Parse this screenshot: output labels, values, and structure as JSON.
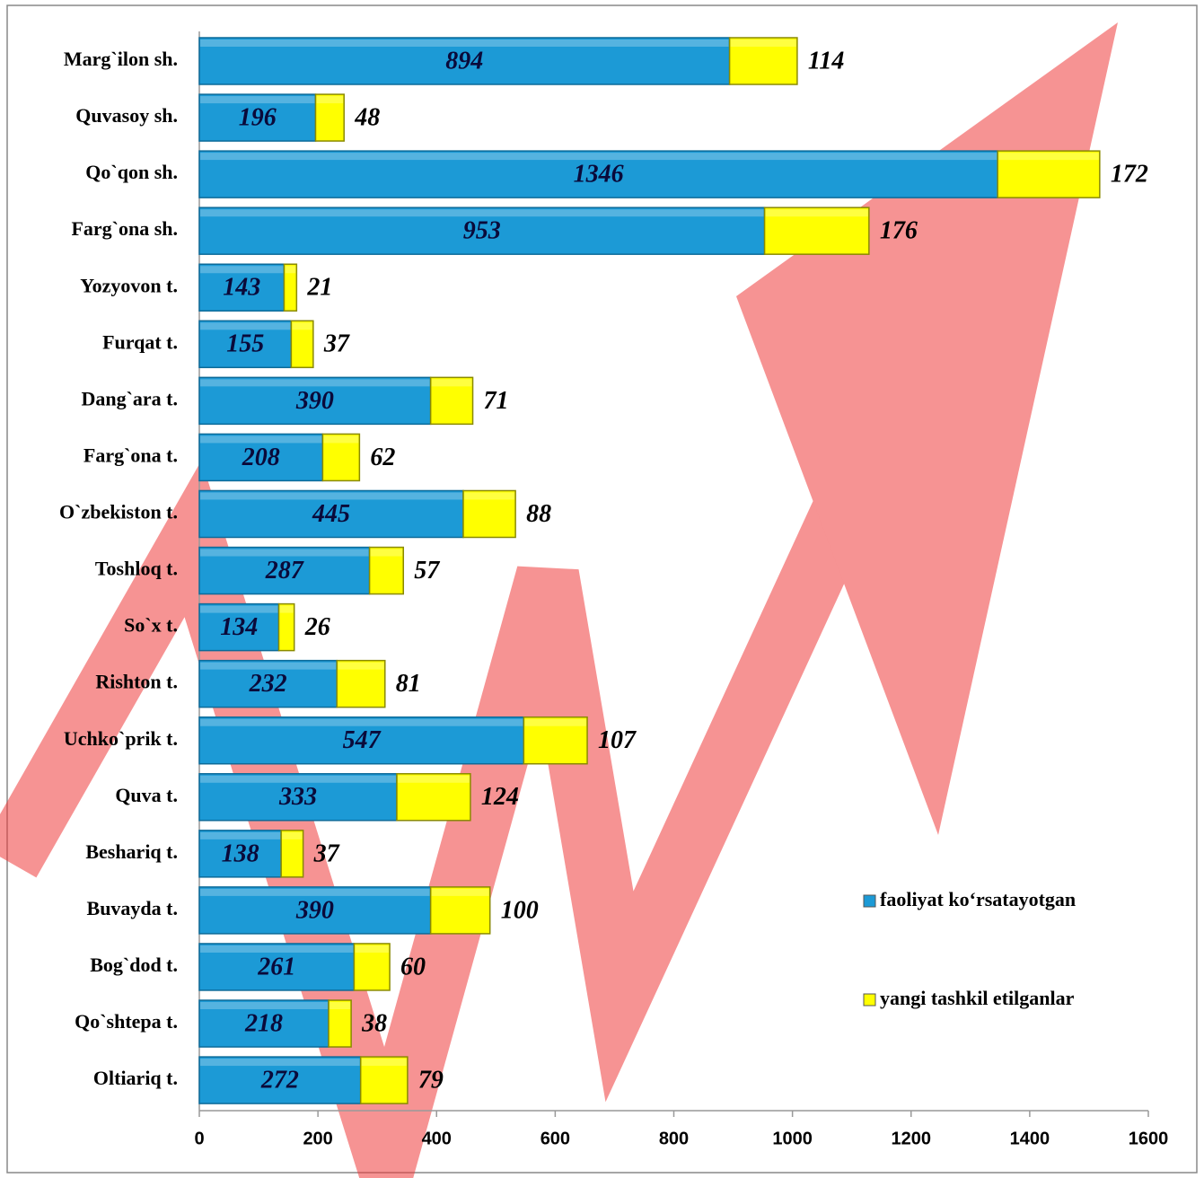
{
  "chart_data": {
    "type": "bar",
    "orientation": "horizontal",
    "stacked": true,
    "categories": [
      "Marg`ilon sh.",
      "Quvasoy sh.",
      "Qo`qon sh.",
      "Farg`ona sh.",
      "Yozyovon t.",
      "Furqat t.",
      "Dang`ara t.",
      "Farg`ona t.",
      "O`zbekiston t.",
      "Toshloq t.",
      "So`x t.",
      "Rishton t.",
      "Uchko`prik t.",
      "Quva t.",
      "Beshariq t.",
      "Buvayda t.",
      "Bog`dod t.",
      "Qo`shtepa t.",
      "Oltiariq t."
    ],
    "series": [
      {
        "name": "faoliyat ko‘rsatayotgan",
        "color": "#1c9ad6",
        "values": [
          894,
          196,
          1346,
          953,
          143,
          155,
          390,
          208,
          445,
          287,
          134,
          232,
          547,
          333,
          138,
          390,
          261,
          218,
          272
        ]
      },
      {
        "name": "yangi tashkil etilganlar",
        "color": "#ffff00",
        "values": [
          114,
          48,
          172,
          176,
          21,
          37,
          71,
          62,
          88,
          57,
          26,
          81,
          107,
          124,
          37,
          100,
          60,
          38,
          79
        ]
      }
    ],
    "xlim": [
      0,
      1600
    ],
    "xticks": [
      0,
      200,
      400,
      600,
      800,
      1000,
      1200,
      1400,
      1600
    ],
    "legend": "right"
  }
}
